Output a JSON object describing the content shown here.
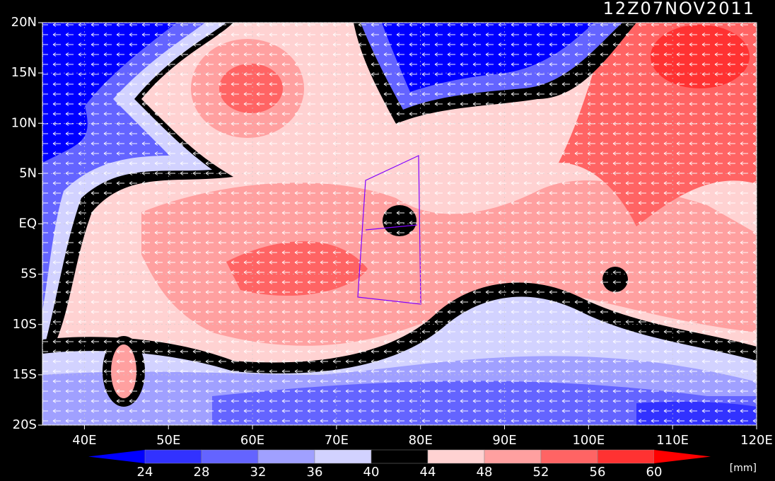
{
  "map": {
    "title": "12Z07NOV2011",
    "xlim": [
      35,
      120
    ],
    "ylim": [
      -20,
      20
    ],
    "xticks": [
      {
        "value": 40,
        "label": "40E"
      },
      {
        "value": 50,
        "label": "50E"
      },
      {
        "value": 60,
        "label": "60E"
      },
      {
        "value": 70,
        "label": "70E"
      },
      {
        "value": 80,
        "label": "80E"
      },
      {
        "value": 90,
        "label": "90E"
      },
      {
        "value": 100,
        "label": "100E"
      },
      {
        "value": 110,
        "label": "110E"
      },
      {
        "value": 120,
        "label": "120E"
      }
    ],
    "yticks": [
      {
        "value": 20,
        "label": "20N"
      },
      {
        "value": 15,
        "label": "15N"
      },
      {
        "value": 10,
        "label": "10N"
      },
      {
        "value": 5,
        "label": "5N"
      },
      {
        "value": 0,
        "label": "EQ"
      },
      {
        "value": -5,
        "label": "5S"
      },
      {
        "value": -10,
        "label": "10S"
      },
      {
        "value": -15,
        "label": "15S"
      },
      {
        "value": -20,
        "label": "20S"
      }
    ],
    "colorbar": {
      "levels": [
        24,
        28,
        32,
        36,
        40,
        44,
        48,
        52,
        56,
        60
      ],
      "colors": [
        "#0000ff",
        "#3232ff",
        "#6464ff",
        "#a0a0ff",
        "#d2d2ff",
        "#000000",
        "#ffd2d2",
        "#ffa0a0",
        "#ff6464",
        "#ff3232",
        "#ff0000"
      ],
      "unit": "[mm]"
    }
  }
}
